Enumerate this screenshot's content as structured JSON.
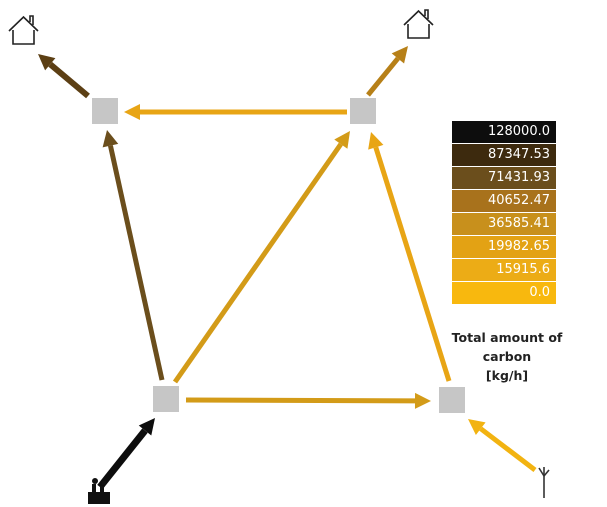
{
  "legend": {
    "title_line1": "Total amount of carbon",
    "title_line2": "[kg/h]",
    "entries": [
      {
        "label": "128000.0",
        "color": "#0d0d0d"
      },
      {
        "label": "87347.53",
        "color": "#3d2a0e"
      },
      {
        "label": "71431.93",
        "color": "#6b4e1c"
      },
      {
        "label": "40652.47",
        "color": "#a8721c"
      },
      {
        "label": "36585.41",
        "color": "#c8901c"
      },
      {
        "label": "19982.65",
        "color": "#e3a214"
      },
      {
        "label": "15915.6",
        "color": "#ecac16"
      },
      {
        "label": "0.0",
        "color": "#f8b80e"
      }
    ]
  },
  "colors": {
    "node_fill": "#c6c6c6",
    "source_flow": "#0d0d0d",
    "flow_dark_brown": "#5c3f14",
    "flow_brown": "#6b4e1c",
    "flow_ochre": "#b78018",
    "flow_gold": "#d39b18",
    "flow_light": "#e8a515",
    "flow_yellow": "#f2b311"
  },
  "icons": {
    "node_top_left": "house-icon",
    "node_top_right": "house-icon",
    "node_bottom_left": "factory-icon",
    "node_bottom_right": "wind-turbine-icon"
  }
}
